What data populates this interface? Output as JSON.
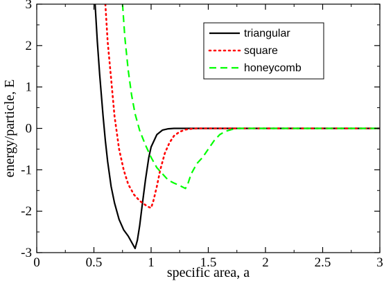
{
  "chart_data": {
    "type": "line",
    "title": "",
    "xlabel": "specific area, a",
    "ylabel": "energy/particle, E",
    "xlim": [
      0,
      3
    ],
    "ylim": [
      -3,
      3
    ],
    "xticks": [
      0,
      0.5,
      1,
      1.5,
      2,
      2.5,
      3
    ],
    "xtick_labels": [
      "0",
      "0.5",
      "1",
      "1.5",
      "2",
      "2.5",
      "3"
    ],
    "yticks": [
      -3,
      -2,
      -1,
      0,
      1,
      2,
      3
    ],
    "ytick_labels": [
      "-3",
      "-2",
      "-1",
      "0",
      "1",
      "2",
      "3"
    ],
    "grid": false,
    "legend": {
      "position": "top-right",
      "entries": [
        "triangular",
        "square",
        "honeycomb"
      ]
    },
    "series": [
      {
        "name": "triangular",
        "color": "#000000",
        "style": "solid",
        "x": [
          0.51,
          0.53,
          0.55,
          0.58,
          0.6,
          0.62,
          0.65,
          0.68,
          0.72,
          0.76,
          0.8,
          0.83,
          0.86,
          0.88,
          0.9,
          0.92,
          0.95,
          0.98,
          1.0,
          1.05,
          1.1,
          1.15,
          1.2,
          1.3,
          1.4,
          1.5,
          1.75,
          2.0,
          2.5,
          3.0
        ],
        "y": [
          3.0,
          2.1,
          1.3,
          0.3,
          -0.3,
          -0.8,
          -1.4,
          -1.8,
          -2.2,
          -2.45,
          -2.6,
          -2.75,
          -2.9,
          -2.7,
          -2.35,
          -1.9,
          -1.25,
          -0.7,
          -0.45,
          -0.15,
          -0.04,
          -0.01,
          0.0,
          0.0,
          0.0,
          0.0,
          0.0,
          0.0,
          0.0,
          0.0
        ]
      },
      {
        "name": "square",
        "color": "#ff0000",
        "style": "dotted",
        "x": [
          0.6,
          0.62,
          0.65,
          0.68,
          0.72,
          0.76,
          0.8,
          0.85,
          0.9,
          0.95,
          0.98,
          1.0,
          1.02,
          1.05,
          1.08,
          1.12,
          1.16,
          1.2,
          1.25,
          1.3,
          1.35,
          1.4,
          1.5,
          1.75,
          2.0,
          2.5,
          3.0
        ],
        "y": [
          3.0,
          2.1,
          1.2,
          0.3,
          -0.5,
          -1.0,
          -1.35,
          -1.6,
          -1.75,
          -1.85,
          -1.9,
          -1.92,
          -1.75,
          -1.4,
          -1.0,
          -0.6,
          -0.35,
          -0.18,
          -0.08,
          -0.03,
          -0.01,
          0.0,
          0.0,
          0.0,
          0.0,
          0.0,
          0.0
        ]
      },
      {
        "name": "honeycomb",
        "color": "#00ff00",
        "style": "dashed",
        "x": [
          0.75,
          0.77,
          0.8,
          0.83,
          0.86,
          0.9,
          0.95,
          1.0,
          1.05,
          1.1,
          1.15,
          1.2,
          1.25,
          1.3,
          1.32,
          1.35,
          1.4,
          1.45,
          1.5,
          1.55,
          1.6,
          1.65,
          1.7,
          1.75,
          2.0,
          2.5,
          3.0
        ],
        "y": [
          3.0,
          2.2,
          1.4,
          0.8,
          0.35,
          -0.05,
          -0.4,
          -0.7,
          -0.95,
          -1.1,
          -1.25,
          -1.32,
          -1.38,
          -1.45,
          -1.35,
          -1.1,
          -0.85,
          -0.7,
          -0.5,
          -0.3,
          -0.15,
          -0.07,
          -0.03,
          0.0,
          0.0,
          0.0,
          0.0
        ]
      }
    ]
  }
}
